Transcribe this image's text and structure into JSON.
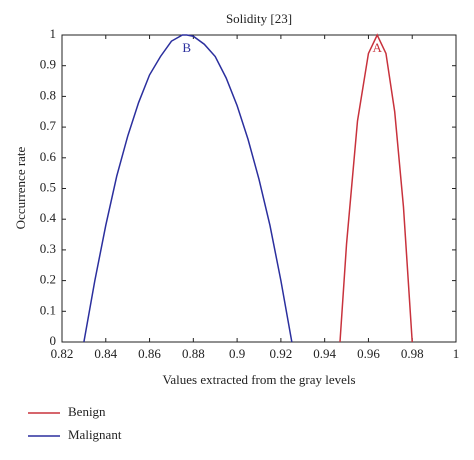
{
  "chart_data": {
    "type": "line",
    "title": "Solidity [23]",
    "x_label": "Values extracted from the gray levels",
    "y_label": "Occurrence rate",
    "xlim": [
      0.82,
      1
    ],
    "ylim": [
      0,
      1
    ],
    "xticks": [
      0.82,
      0.84,
      0.86,
      0.88,
      0.9,
      0.92,
      0.94,
      0.96,
      0.98,
      1
    ],
    "yticks": [
      0,
      0.1,
      0.2,
      0.3,
      0.4,
      0.5,
      0.6,
      0.7,
      0.8,
      0.9,
      1
    ],
    "legend": "below-left",
    "series": [
      {
        "name": "Benign",
        "color": "#c8323c",
        "x": [
          0.947,
          0.95,
          0.955,
          0.96,
          0.964,
          0.968,
          0.972,
          0.976,
          0.98
        ],
        "values": [
          0,
          0.32,
          0.72,
          0.94,
          1,
          0.94,
          0.75,
          0.44,
          0
        ]
      },
      {
        "name": "Malignant",
        "color": "#2b2f9e",
        "x": [
          0.83,
          0.835,
          0.84,
          0.845,
          0.85,
          0.855,
          0.86,
          0.865,
          0.87,
          0.875,
          0.877,
          0.88,
          0.885,
          0.89,
          0.895,
          0.9,
          0.905,
          0.91,
          0.915,
          0.92,
          0.925
        ],
        "values": [
          0,
          0.2,
          0.38,
          0.54,
          0.67,
          0.78,
          0.87,
          0.93,
          0.98,
          1,
          1,
          0.996,
          0.97,
          0.93,
          0.86,
          0.77,
          0.66,
          0.53,
          0.38,
          0.2,
          0
        ]
      }
    ],
    "annotations": [
      {
        "text": "A",
        "x": 0.964,
        "y": 0.955,
        "color": "#c8323c"
      },
      {
        "text": "B",
        "x": 0.877,
        "y": 0.955,
        "color": "#2b2f9e"
      }
    ]
  }
}
